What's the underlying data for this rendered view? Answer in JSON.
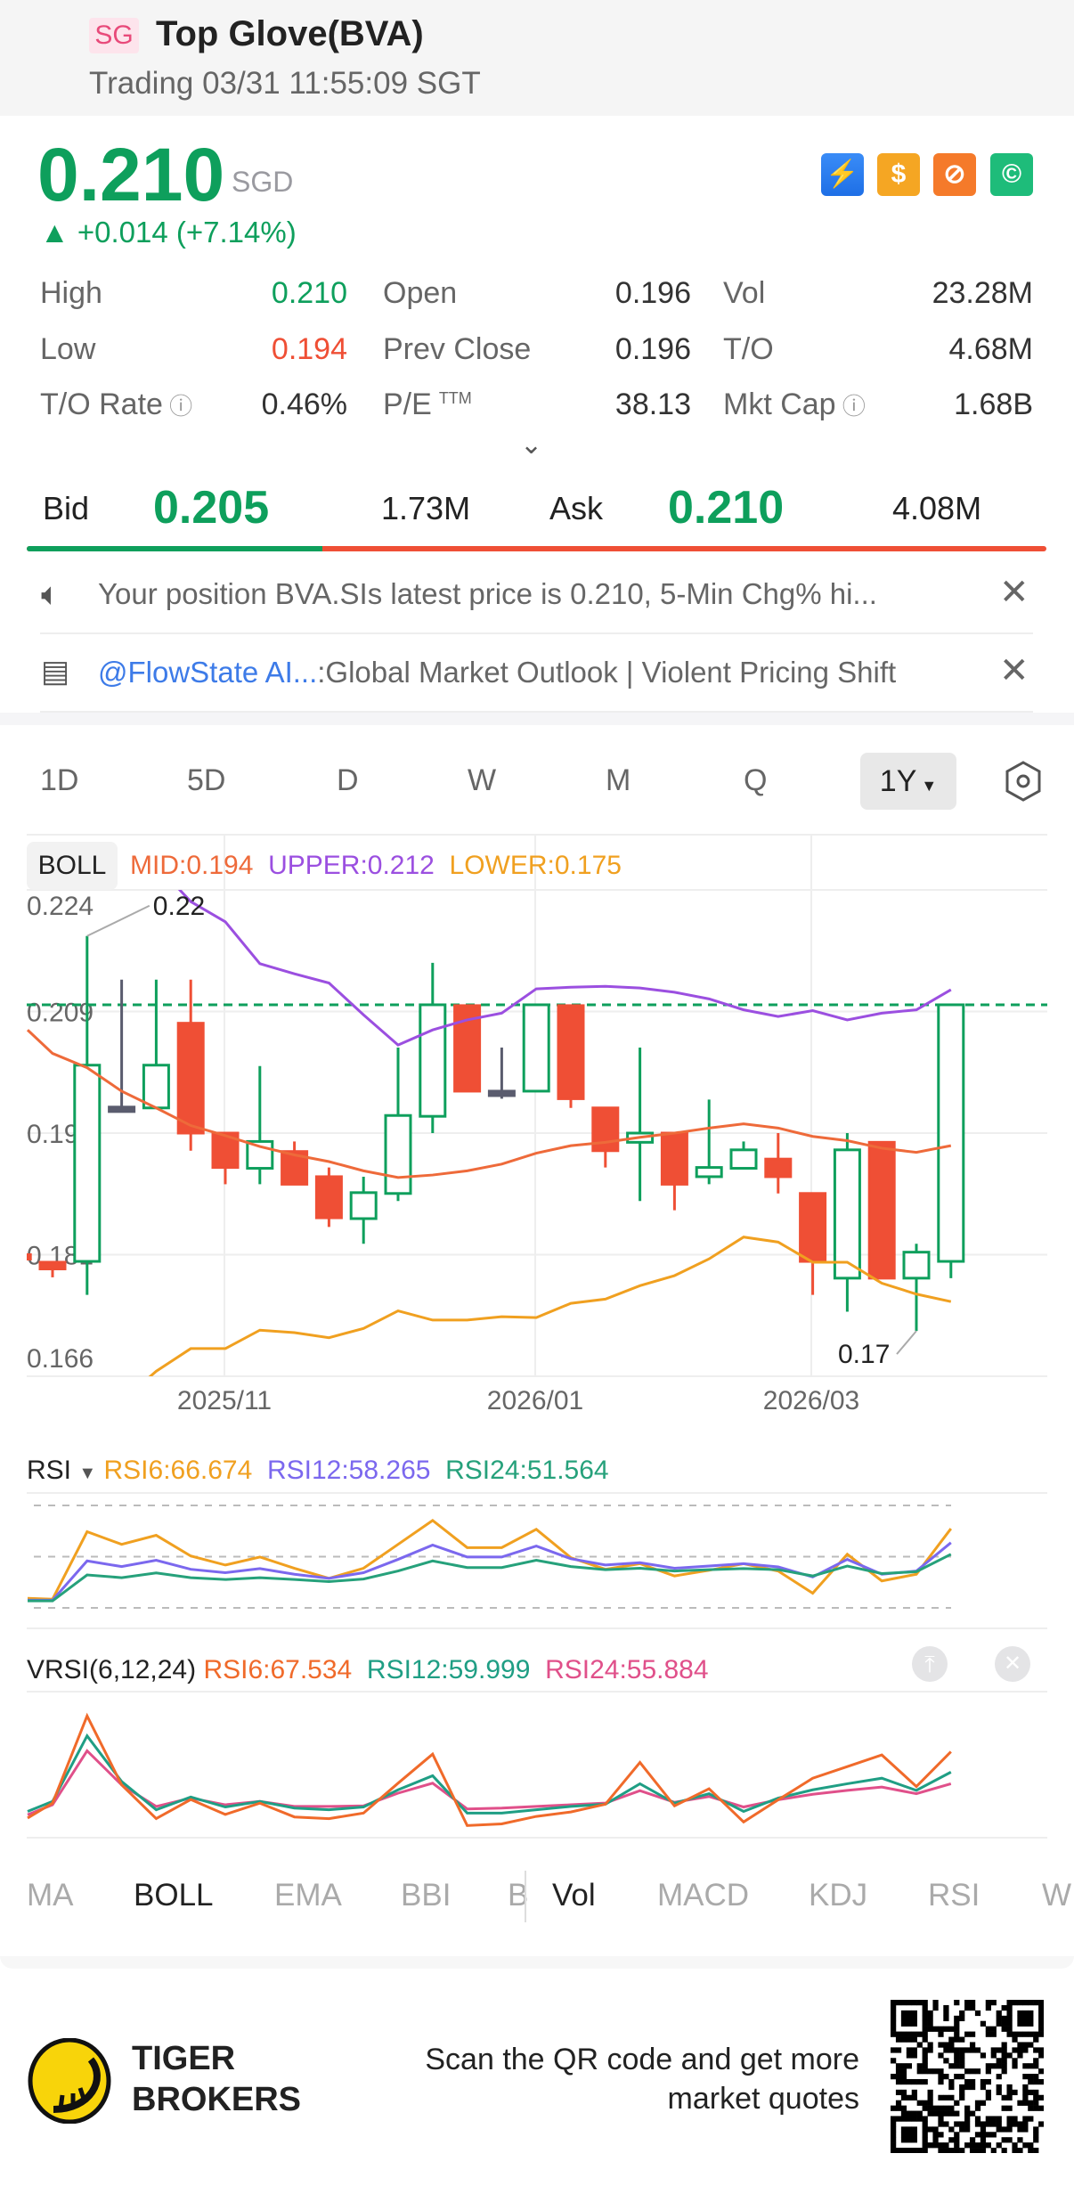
{
  "header": {
    "market_badge": "SG",
    "title": "Top Glove(BVA)",
    "status": "Trading 03/31 11:55:09 SGT"
  },
  "quote": {
    "price": "0.210",
    "currency": "SGD",
    "change": "+0.014 (+7.14%)",
    "icons": [
      "lightning-level1-icon",
      "dollar-icon",
      "no-short-icon",
      "hand-coin-icon"
    ]
  },
  "stats": [
    {
      "label": "High",
      "value": "0.210",
      "color": "#0e9f5c"
    },
    {
      "label": "Open",
      "value": "0.196"
    },
    {
      "label": "Vol",
      "value": "23.28M"
    },
    {
      "label": "Low",
      "value": "0.194",
      "color": "#ef4f35"
    },
    {
      "label": "Prev Close",
      "value": "0.196"
    },
    {
      "label": "T/O",
      "value": "4.68M"
    },
    {
      "label": "T/O Rate",
      "value": "0.46%"
    },
    {
      "label": "P/E",
      "sup": "TTM",
      "value": "38.13"
    },
    {
      "label": "Mkt Cap",
      "value": "1.68B"
    }
  ],
  "orderbook": {
    "bid_label": "Bid",
    "bid": "0.205",
    "bid_size": "1.73M",
    "ask_label": "Ask",
    "ask": "0.210",
    "ask_size": "4.08M",
    "bid_ratio": 0.29
  },
  "notices": [
    {
      "text": "Your position BVA.SIs latest price is 0.210,   5-Min Chg% hi..."
    },
    {
      "link": "@FlowState AI...",
      "text": ":Global Market Outlook | Violent Pricing Shift"
    }
  ],
  "periods": [
    "1D",
    "5D",
    "D",
    "W",
    "M",
    "Q",
    "1Y"
  ],
  "active_period": "1Y",
  "indicator_tabs": [
    "MA",
    "BOLL",
    "EMA",
    "BBI",
    "B",
    "Vol",
    "MACD",
    "KDJ",
    "RSI",
    "W"
  ],
  "colors": {
    "up": "#0e9f5c",
    "down": "#ef4f35",
    "mid": "#ee6a3a",
    "upper": "#9b4fe0",
    "lower": "#f0a020"
  },
  "chart_data": [
    {
      "type": "candlestick",
      "indicator": "BOLL",
      "legend": {
        "mid": "MID:0.194",
        "upper": "UPPER:0.212",
        "lower": "LOWER:0.175"
      },
      "yticks": [
        "0.224",
        "0.209",
        "0.195",
        "0.181",
        "0.166"
      ],
      "ytick_values": [
        0.224,
        0.2095,
        0.195,
        0.1805,
        0.166
      ],
      "ylim": [
        0.166,
        0.224
      ],
      "xticks": [
        {
          "label": "2025/11",
          "index": 5
        },
        {
          "label": "2026/01",
          "index": 14
        },
        {
          "label": "2026/03",
          "index": 22
        }
      ],
      "last_price": 0.2103,
      "annotations": [
        {
          "text": "0.22",
          "index": 2,
          "value": 0.2185
        },
        {
          "text": "0.17",
          "index": 26,
          "value": 0.1714
        }
      ],
      "candles": [
        [
          0.1805,
          0.18,
          0.1806,
          0.1799
        ],
        [
          0.1796,
          0.1788,
          0.1796,
          0.1778
        ],
        [
          0.1797,
          0.2031,
          0.2185,
          0.1757
        ],
        [
          0.1981,
          0.1976,
          0.2133,
          0.1976
        ],
        [
          0.198,
          0.2031,
          0.2133,
          0.198
        ],
        [
          0.2081,
          0.195,
          0.2133,
          0.1929
        ],
        [
          0.195,
          0.1909,
          0.195,
          0.1889
        ],
        [
          0.1908,
          0.194,
          0.203,
          0.1889
        ],
        [
          0.1928,
          0.1889,
          0.194,
          0.1889
        ],
        [
          0.1898,
          0.1849,
          0.1909,
          0.1838
        ],
        [
          0.1848,
          0.1879,
          0.1898,
          0.1818
        ],
        [
          0.1878,
          0.1971,
          0.2052,
          0.1869
        ],
        [
          0.197,
          0.2103,
          0.2153,
          0.195
        ],
        [
          0.2102,
          0.2,
          0.2102,
          0.2
        ],
        [
          0.2,
          0.1996,
          0.2052,
          0.1991
        ],
        [
          0.2,
          0.2103,
          0.2103,
          0.2
        ],
        [
          0.2102,
          0.1991,
          0.2102,
          0.198
        ],
        [
          0.198,
          0.1929,
          0.198,
          0.1909
        ],
        [
          0.1939,
          0.195,
          0.2052,
          0.1869
        ],
        [
          0.195,
          0.1889,
          0.195,
          0.1858
        ],
        [
          0.1898,
          0.1909,
          0.199,
          0.1889
        ],
        [
          0.1908,
          0.193,
          0.194,
          0.1908
        ],
        [
          0.1919,
          0.1898,
          0.195,
          0.1878
        ],
        [
          0.1878,
          0.1797,
          0.1878,
          0.1757
        ],
        [
          0.1777,
          0.193,
          0.195,
          0.1737
        ],
        [
          0.1939,
          0.1777,
          0.1939,
          0.1777
        ],
        [
          0.1777,
          0.1808,
          0.1818,
          0.1714
        ],
        [
          0.1797,
          0.2103,
          0.2103,
          0.1777
        ]
      ],
      "mid": [
        0.2073,
        0.2045,
        0.2028,
        0.2,
        0.198,
        0.1959,
        0.1947,
        0.1934,
        0.1924,
        0.1916,
        0.1905,
        0.1897,
        0.19,
        0.1905,
        0.1913,
        0.1926,
        0.1935,
        0.1939,
        0.1945,
        0.195,
        0.1956,
        0.1961,
        0.1956,
        0.1946,
        0.1941,
        0.1932,
        0.1927,
        0.1935
      ],
      "upper": [
        null,
        null,
        null,
        null,
        0.227,
        0.2226,
        0.2202,
        0.2152,
        0.214,
        0.2129,
        0.2091,
        0.2055,
        0.2073,
        0.2085,
        0.2093,
        0.2122,
        0.2124,
        0.2125,
        0.2123,
        0.2118,
        0.211,
        0.2097,
        0.2089,
        0.2096,
        0.2085,
        0.2093,
        0.2097,
        0.2121
      ],
      "lower": [
        null,
        null,
        null,
        0.163,
        0.1666,
        0.1693,
        0.1693,
        0.1715,
        0.1712,
        0.1706,
        0.1717,
        0.1738,
        0.1727,
        0.1727,
        0.1731,
        0.173,
        0.1747,
        0.1752,
        0.1768,
        0.178,
        0.18,
        0.1826,
        0.182,
        0.1796,
        0.1796,
        0.1771,
        0.1758,
        0.1749
      ]
    },
    {
      "type": "line",
      "title": "RSI",
      "ylim": [
        20,
        80
      ],
      "reference_lines": [
        80,
        50,
        20
      ],
      "series": [
        {
          "name": "RSI6:66.674",
          "color": "#f0a020",
          "values": [
            25.6,
            25.1,
            64.6,
            57.2,
            62.5,
            50.4,
            45.1,
            49.8,
            43.2,
            37.3,
            43.2,
            57.2,
            71.2,
            55.3,
            55.3,
            66.0,
            49.4,
            42.6,
            45.9,
            38.7,
            42.0,
            45.9,
            41.6,
            28.6,
            51.4,
            35.8,
            39.7,
            66.4
          ]
        },
        {
          "name": "RSI12:58.265",
          "color": "#7b68ee",
          "values": [
            24.5,
            24.5,
            47.5,
            44.2,
            47.9,
            42.6,
            40.6,
            43.0,
            39.7,
            37.3,
            40.6,
            48.4,
            56.8,
            49.8,
            49.8,
            56.2,
            48.8,
            45.1,
            46.5,
            43.2,
            44.5,
            45.9,
            44.0,
            38.1,
            48.4,
            39.7,
            41.6,
            58.2
          ]
        },
        {
          "name": "RSI24:51.564",
          "color": "#26a17b",
          "values": [
            24.1,
            24.1,
            39.3,
            37.7,
            40.5,
            37.7,
            36.6,
            37.7,
            36.6,
            35.4,
            36.9,
            41.6,
            47.5,
            43.6,
            43.6,
            47.9,
            44.2,
            42.4,
            43.2,
            41.6,
            42.4,
            43.0,
            42.4,
            38.7,
            44.5,
            40.1,
            41.2,
            51.4
          ]
        }
      ]
    },
    {
      "type": "line",
      "title": "VRSI(6,12,24)",
      "ylim": [
        36.4,
        89.2
      ],
      "series": [
        {
          "name": "RSI6:67.534",
          "color": "#f06a2a",
          "values": [
            43.5,
            48.9,
            80.4,
            55.5,
            43.3,
            50.2,
            44.8,
            48.9,
            43.9,
            43.3,
            45.3,
            56.1,
            66.6,
            40.8,
            41.4,
            44.1,
            45.7,
            48.5,
            63.6,
            47.9,
            54.1,
            42.1,
            50.1,
            57.9,
            62.1,
            66.3,
            54.9,
            67.5
          ]
        },
        {
          "name": "RSI12:59.999",
          "color": "#1f9e84",
          "values": [
            45.9,
            49.5,
            73.2,
            56.7,
            46.5,
            51.1,
            47.5,
            49.5,
            47.1,
            46.5,
            47.5,
            53.7,
            58.8,
            45.3,
            45.3,
            46.5,
            47.7,
            48.5,
            55.9,
            48.9,
            52.3,
            45.9,
            50.7,
            53.7,
            55.9,
            57.9,
            53.5,
            60.1
          ]
        },
        {
          "name": "RSI24:55.884",
          "color": "#e0508a",
          "values": [
            44.7,
            48.3,
            67.8,
            55.5,
            47.7,
            50.7,
            48.3,
            49.5,
            47.7,
            47.7,
            47.9,
            52.5,
            56.1,
            46.8,
            47.1,
            47.7,
            48.3,
            48.9,
            53.4,
            49.2,
            51.3,
            47.5,
            50.1,
            52.1,
            53.5,
            54.7,
            52.3,
            55.9
          ]
        }
      ]
    }
  ],
  "footer": {
    "brand_line1": "TIGER",
    "brand_line2": "BROKERS",
    "cta": "Scan the QR code and get more market quotes"
  }
}
